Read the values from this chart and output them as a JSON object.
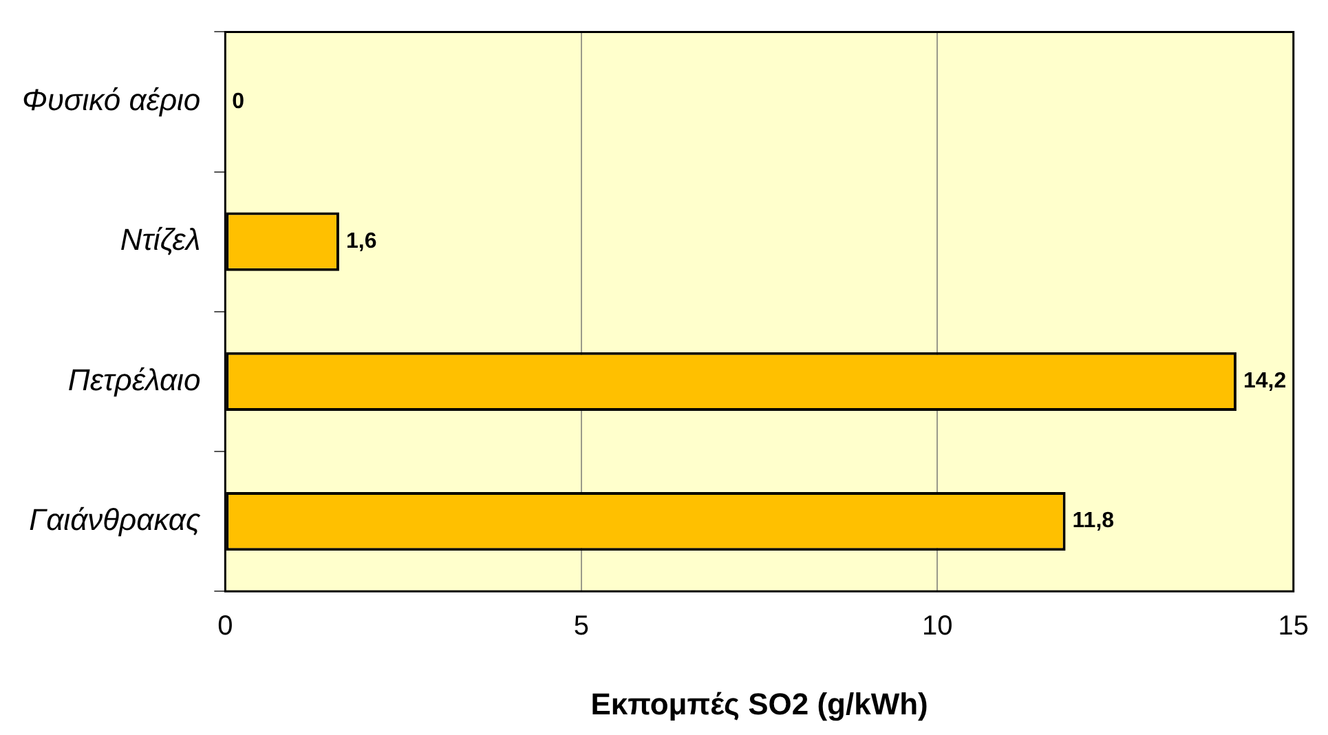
{
  "chart_data": {
    "type": "bar",
    "orientation": "horizontal",
    "xlabel": "Εκπομπές SO2 (g/kWh)",
    "categories": [
      "Φυσικό αέριο",
      "Ντίζελ",
      "Πετρέλαιο",
      "Γαιάνθρακας"
    ],
    "values": [
      0,
      1.6,
      14.2,
      11.8
    ],
    "value_labels": [
      "0",
      "1,6",
      "14,2",
      "11,8"
    ],
    "color": "#ffc000",
    "xlim": [
      0,
      15
    ],
    "xticks": [
      0,
      5,
      10,
      15
    ],
    "grid": "x"
  }
}
